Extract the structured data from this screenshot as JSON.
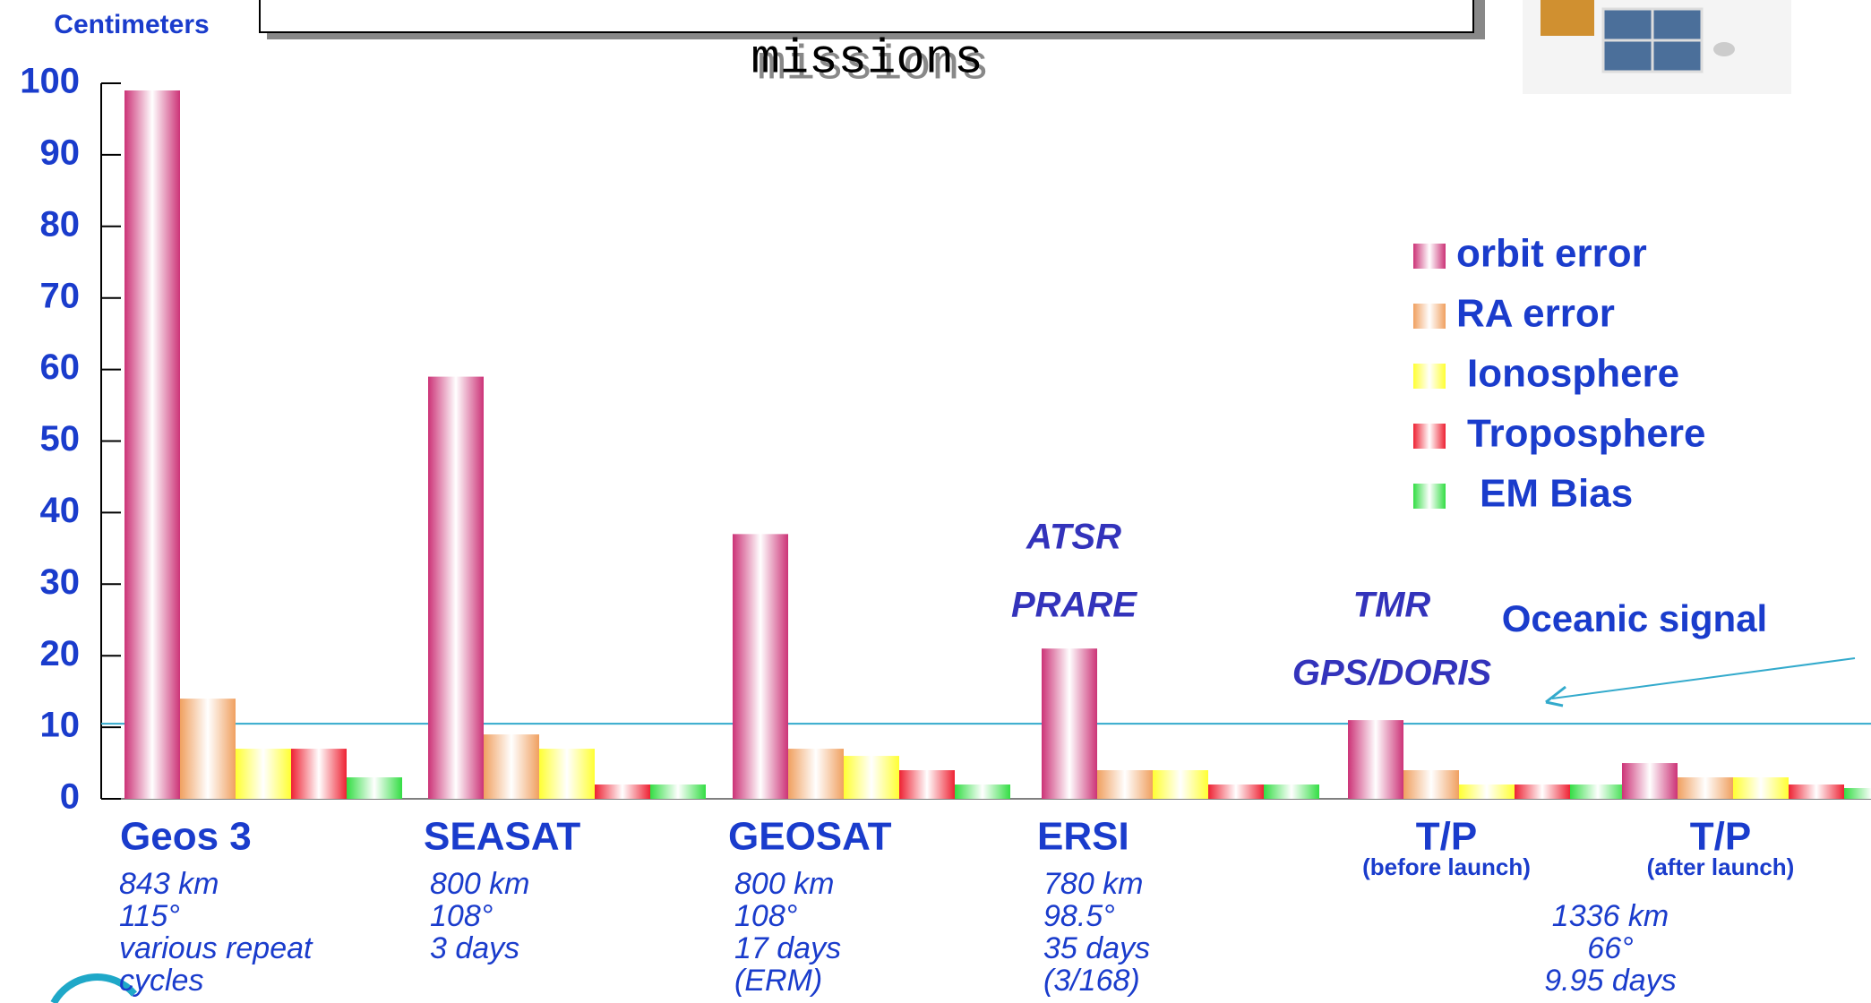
{
  "chart_data": {
    "type": "bar",
    "title": "missions",
    "y_label": "Centimeters",
    "categories": [
      "Geos 3",
      "SEASAT",
      "GEOSAT",
      "ERSI",
      "T/P",
      "T/P"
    ],
    "category_notes": [
      null,
      null,
      null,
      null,
      "(before launch)",
      "(after launch)"
    ],
    "details": [
      [
        "843 km",
        "115°",
        "various repeat",
        "cycles"
      ],
      [
        "800 km",
        "108°",
        "3 days"
      ],
      [
        "800 km",
        "108°",
        "17 days",
        "(ERM)"
      ],
      [
        "780 km",
        "98.5°",
        "35 days",
        "(3/168)"
      ],
      [],
      [
        "1336 km",
        "66°",
        "9.95 days"
      ]
    ],
    "series": [
      {
        "name": "orbit error",
        "color": "#cc3377",
        "values": [
          99,
          59,
          37,
          21,
          11,
          5
        ]
      },
      {
        "name": "RA error",
        "color": "#f0a060",
        "values": [
          14,
          9,
          7,
          4,
          4,
          3
        ]
      },
      {
        "name": "Ionosphere",
        "color": "#ffff33",
        "values": [
          7,
          7,
          6,
          4,
          2,
          3
        ]
      },
      {
        "name": "Troposphere",
        "color": "#ee2233",
        "values": [
          7,
          2,
          4,
          2,
          2,
          2
        ]
      },
      {
        "name": "EM Bias",
        "color": "#33dd44",
        "values": [
          3,
          2,
          2,
          2,
          2,
          1.5
        ]
      }
    ],
    "ylim": [
      0,
      100
    ],
    "yticks": [
      0,
      10,
      20,
      30,
      40,
      50,
      60,
      70,
      80,
      90,
      100
    ],
    "reference_line": {
      "label": "Oceanic signal",
      "value": 10.5,
      "color": "#33aacc"
    },
    "annotations": [
      "ATSR",
      "PRARE",
      "TMR",
      "GPS/DORIS"
    ]
  }
}
